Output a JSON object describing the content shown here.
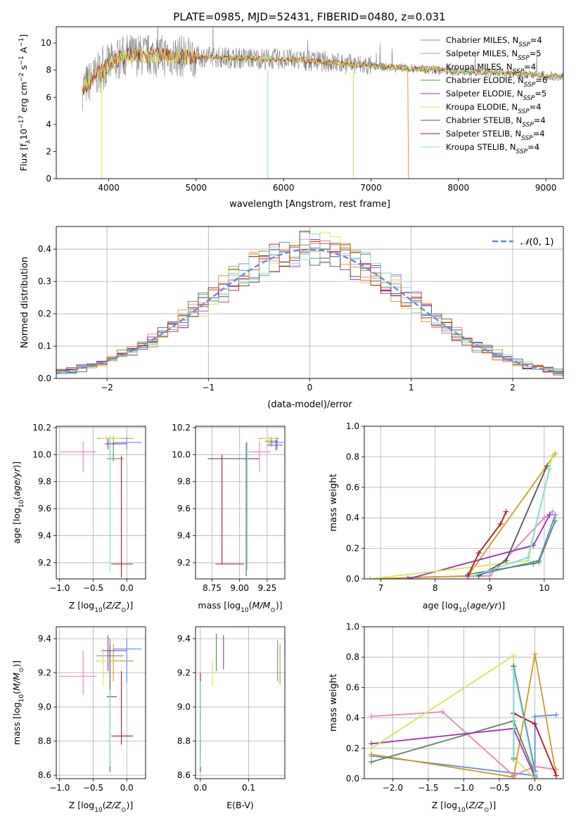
{
  "figure_title": "PLATE=0985, MJD=52431, FIBERID=0480, z=0.031",
  "colors": {
    "Chabrier MILES": "#5b8ee6",
    "Salpeter MILES": "#e87fbf",
    "Kroupa MILES": "#d09a20",
    "Chabrier ELODIE": "#5a8a5a",
    "Salpeter ELODIE": "#9b2fc0",
    "Kroupa ELODIE": "#d4e84a",
    "Chabrier STELIB": "#555555",
    "Salpeter STELIB": "#b0151b",
    "Kroupa STELIB": "#7fdde0",
    "orange": "#e07a2a",
    "gauss": "#5b8ee6"
  },
  "chart_data": [
    {
      "id": "spectrum",
      "type": "line",
      "xlabel": "wavelength [Angstrom, rest frame]",
      "ylabel": "Flux [f_λ 10^-17 erg cm^-2 s^-1 A^-1]",
      "xlim": [
        3400,
        9200
      ],
      "ylim": [
        0,
        11.2
      ],
      "xticks": [
        4000,
        5000,
        6000,
        7000,
        8000,
        9000
      ],
      "yticks": [
        0,
        2,
        4,
        6,
        8,
        10
      ],
      "legend_position": "upper right",
      "legend": [
        {
          "main": "Chabrier MILES, N",
          "sub": "SSP",
          "tail": "=4"
        },
        {
          "main": "Salpeter MILES, N",
          "sub": "SSP",
          "tail": "=5"
        },
        {
          "main": "Kroupa MILES, N",
          "sub": "SSP",
          "tail": "=4"
        },
        {
          "main": "Chabrier ELODIE, N",
          "sub": "SSP",
          "tail": "=6"
        },
        {
          "main": "Salpeter ELODIE, N",
          "sub": "SSP",
          "tail": "=5"
        },
        {
          "main": "Kroupa ELODIE, N",
          "sub": "SSP",
          "tail": "=4"
        },
        {
          "main": "Chabrier STELIB, N",
          "sub": "SSP",
          "tail": "=4"
        },
        {
          "main": "Salpeter STELIB, N",
          "sub": "SSP",
          "tail": "=4"
        },
        {
          "main": "Kroupa STELIB, N",
          "sub": "SSP",
          "tail": "=4"
        }
      ],
      "continuum": {
        "x": [
          3700,
          3850,
          4000,
          4200,
          4500,
          5000,
          5500,
          6000,
          6500,
          7000,
          7500,
          8000,
          8500,
          9000,
          9200
        ],
        "y": [
          6.6,
          7.6,
          8.4,
          9.1,
          9.1,
          9.0,
          8.9,
          8.8,
          8.6,
          8.3,
          8.1,
          7.9,
          7.8,
          7.6,
          7.5
        ]
      }
    },
    {
      "id": "residuals",
      "type": "histogram",
      "xlabel": "(data-model)/error",
      "ylabel": "Normed distribution",
      "xlim": [
        -2.5,
        2.5
      ],
      "ylim": [
        0,
        0.47
      ],
      "xticks": [
        -2,
        -1,
        0,
        1,
        2
      ],
      "yticks": [
        0.0,
        0.1,
        0.2,
        0.3,
        0.4
      ],
      "grid": true,
      "legend_label": "N(0,1)",
      "bin_width": 0.1
    },
    {
      "id": "age-vs-Z",
      "type": "errorbar",
      "xlabel": "Z [log10(Z/Z_sun)]",
      "ylabel": "age  [log10(age/yr)]",
      "xlim": [
        -1.05,
        0.28
      ],
      "ylim": [
        9.08,
        10.21
      ],
      "xticks": [
        -1.0,
        -0.5,
        0.0
      ],
      "yticks": [
        9.2,
        9.4,
        9.6,
        9.8,
        10.0,
        10.2
      ],
      "points": [
        {
          "model": "Chabrier MILES",
          "x": 0.0,
          "xerr": [
            0.2,
            0.22
          ],
          "y": 10.09,
          "yerr": [
            0.05,
            0.04
          ]
        },
        {
          "model": "Salpeter MILES",
          "x": -0.65,
          "xerr": [
            0.35,
            0.2
          ],
          "y": 10.02,
          "yerr": [
            0.15,
            0.08
          ]
        },
        {
          "model": "Kroupa MILES",
          "x": -0.2,
          "xerr": [
            0.25,
            0.3
          ],
          "y": 10.12,
          "yerr": [
            0.05,
            0.02
          ]
        },
        {
          "model": "Chabrier ELODIE",
          "x": -0.2,
          "xerr": [
            0.1,
            0.15
          ],
          "y": 9.97,
          "yerr": [
            0.02,
            0.12
          ]
        },
        {
          "model": "Salpeter ELODIE",
          "x": -0.28,
          "xerr": [
            0.05,
            0.28
          ],
          "y": 10.08,
          "yerr": [
            0.04,
            0.04
          ]
        },
        {
          "model": "Kroupa ELODIE",
          "x": -0.3,
          "xerr": [
            0.1,
            0.2
          ],
          "y": 10.12,
          "yerr": [
            0.04,
            0.02
          ]
        },
        {
          "model": "Chabrier STELIB",
          "x": -0.25,
          "xerr": [
            0.05,
            0.1
          ],
          "y": 10.08,
          "yerr": [
            0.1,
            0.04
          ]
        },
        {
          "model": "Salpeter STELIB",
          "x": -0.08,
          "xerr": [
            0.15,
            0.17
          ],
          "y": 9.19,
          "yerr": [
            0.1,
            0.8
          ]
        },
        {
          "model": "Kroupa STELIB",
          "x": -0.25,
          "xerr": [
            0.02,
            0.02
          ],
          "y": 10.09,
          "yerr": [
            0.96,
            0.05
          ]
        }
      ]
    },
    {
      "id": "age-vs-mass",
      "type": "errorbar",
      "xlabel": "mass [log10(M/M_sun)]",
      "ylabel": "",
      "xlim": [
        8.6,
        9.41
      ],
      "ylim": [
        9.08,
        10.21
      ],
      "xticks": [
        8.75,
        9.0,
        9.25
      ],
      "xtick_labels": [
        "8.75",
        "9.00",
        "9.25"
      ],
      "yticks": [
        9.2,
        9.4,
        9.6,
        9.8,
        10.0,
        10.2
      ],
      "points": [
        {
          "model": "Chabrier MILES",
          "x": 9.34,
          "xerr": [
            0.08,
            0.06
          ],
          "y": 10.09,
          "yerr": [
            0.05,
            0.04
          ]
        },
        {
          "model": "Salpeter MILES",
          "x": 9.18,
          "xerr": [
            0.1,
            0.1
          ],
          "y": 10.02,
          "yerr": [
            0.15,
            0.08
          ]
        },
        {
          "model": "Kroupa MILES",
          "x": 9.27,
          "xerr": [
            0.1,
            0.08
          ],
          "y": 10.12,
          "yerr": [
            0.05,
            0.02
          ]
        },
        {
          "model": "Chabrier ELODIE",
          "x": 9.29,
          "xerr": [
            0.06,
            0.06
          ],
          "y": 10.1,
          "yerr": [
            0.04,
            0.03
          ]
        },
        {
          "model": "Salpeter ELODIE",
          "x": 9.33,
          "xerr": [
            0.08,
            0.06
          ],
          "y": 10.07,
          "yerr": [
            0.04,
            0.04
          ]
        },
        {
          "model": "Kroupa ELODIE",
          "x": 9.27,
          "xerr": [
            0.07,
            0.05
          ],
          "y": 10.12,
          "yerr": [
            0.03,
            0.02
          ]
        },
        {
          "model": "Chabrier STELIB",
          "x": 9.06,
          "xerr": [
            0.35,
            0.12
          ],
          "y": 9.97,
          "yerr": [
            0.87,
            0.12
          ]
        },
        {
          "model": "Salpeter STELIB",
          "x": 8.84,
          "xerr": [
            0.06,
            0.2
          ],
          "y": 9.19,
          "yerr": [
            0.0,
            0.81
          ]
        },
        {
          "model": "Kroupa STELIB",
          "x": 9.07,
          "xerr": [
            0.0,
            0.0
          ],
          "y": 10.05,
          "yerr": [
            0.9,
            0.04
          ]
        }
      ]
    },
    {
      "id": "mass-weight-vs-age",
      "type": "line",
      "xlabel": "age  [log10(age/yr)]",
      "ylabel": "mass weight",
      "xlim": [
        6.7,
        10.35
      ],
      "ylim": [
        0,
        1.0
      ],
      "xticks": [
        7,
        8,
        9,
        10
      ],
      "yticks": [
        0.0,
        0.2,
        0.4,
        0.6,
        0.8,
        1.0
      ],
      "grid": true,
      "series": [
        {
          "model": "Chabrier MILES",
          "x": [
            8.7,
            9.9,
            10.2
          ],
          "y": [
            0.02,
            0.12,
            0.42
          ]
        },
        {
          "model": "Salpeter MILES",
          "x": [
            7.5,
            9.0,
            10.0,
            10.15
          ],
          "y": [
            0.01,
            0.02,
            0.4,
            0.44
          ]
        },
        {
          "model": "Kroupa MILES",
          "x": [
            6.8,
            8.6,
            10.2
          ],
          "y": [
            0.0,
            0.02,
            0.82
          ]
        },
        {
          "model": "Chabrier ELODIE",
          "x": [
            8.6,
            9.8,
            9.9,
            10.2
          ],
          "y": [
            0.03,
            0.1,
            0.11,
            0.38
          ]
        },
        {
          "model": "Salpeter ELODIE",
          "x": [
            7.5,
            9.8,
            10.1
          ],
          "y": [
            0.0,
            0.22,
            0.42
          ]
        },
        {
          "model": "Kroupa ELODIE",
          "x": [
            6.8,
            9.7,
            10.15
          ],
          "y": [
            0.0,
            0.12,
            0.81
          ]
        },
        {
          "model": "Chabrier STELIB",
          "x": [
            8.8,
            9.3,
            10.05
          ],
          "y": [
            0.02,
            0.12,
            0.74
          ]
        },
        {
          "model": "Salpeter STELIB",
          "x": [
            8.6,
            8.8,
            9.2,
            9.3
          ],
          "y": [
            0.02,
            0.17,
            0.36,
            0.44
          ]
        },
        {
          "model": "Kroupa STELIB",
          "x": [
            8.7,
            9.7,
            10.1
          ],
          "y": [
            0.02,
            0.14,
            0.72
          ]
        }
      ]
    },
    {
      "id": "mass-vs-Z",
      "type": "errorbar",
      "xlabel": "Z [log10(Z/Z_sun)]",
      "ylabel": "mass [log10(M/M_sun)]",
      "xlim": [
        -1.05,
        0.28
      ],
      "ylim": [
        8.58,
        9.47
      ],
      "xticks": [
        -1.0,
        -0.5,
        0.0
      ],
      "yticks": [
        8.6,
        8.8,
        9.0,
        9.2,
        9.4
      ],
      "points": [
        {
          "model": "Chabrier MILES",
          "x": 0.0,
          "xerr": [
            0.2,
            0.22
          ],
          "y": 9.34,
          "yerr": [
            0.2,
            0.06
          ]
        },
        {
          "model": "Salpeter MILES",
          "x": -0.65,
          "xerr": [
            0.35,
            0.2
          ],
          "y": 9.18,
          "yerr": [
            0.11,
            0.15
          ]
        },
        {
          "model": "Kroupa MILES",
          "x": -0.2,
          "xerr": [
            0.25,
            0.3
          ],
          "y": 9.27,
          "yerr": [
            0.12,
            0.1
          ]
        },
        {
          "model": "Chabrier ELODIE",
          "x": -0.25,
          "xerr": [
            0.2,
            0.2
          ],
          "y": 9.3,
          "yerr": [
            0.06,
            0.1
          ]
        },
        {
          "model": "Salpeter ELODIE",
          "x": -0.28,
          "xerr": [
            0.1,
            0.28
          ],
          "y": 9.33,
          "yerr": [
            0.12,
            0.09
          ]
        },
        {
          "model": "Kroupa ELODIE",
          "x": -0.35,
          "xerr": [
            0.08,
            0.15
          ],
          "y": 9.27,
          "yerr": [
            0.15,
            0.08
          ]
        },
        {
          "model": "Chabrier STELIB",
          "x": -0.25,
          "xerr": [
            0.05,
            0.1
          ],
          "y": 9.06,
          "yerr": [
            0.44,
            0.3
          ]
        },
        {
          "model": "Salpeter STELIB",
          "x": -0.08,
          "xerr": [
            0.15,
            0.17
          ],
          "y": 8.83,
          "yerr": [
            0.05,
            0.38
          ]
        },
        {
          "model": "Kroupa STELIB",
          "x": -0.25,
          "xerr": [
            0.02,
            0.02
          ],
          "y": 9.0,
          "yerr": [
            0.35,
            0.1
          ]
        }
      ]
    },
    {
      "id": "mass-vs-EBV",
      "type": "errorbar",
      "xlabel": "E(B-V)",
      "ylabel": "",
      "xlim": [
        -0.01,
        0.175
      ],
      "ylim": [
        8.58,
        9.47
      ],
      "xticks": [
        0.0,
        0.1
      ],
      "xtick_labels": [
        "0.0",
        "0.1"
      ],
      "yticks": [
        8.6,
        8.8,
        9.0,
        9.2,
        9.4
      ],
      "points": [
        {
          "model": "Chabrier MILES",
          "x": 0.16,
          "xerr": [
            0.0,
            0.0
          ],
          "y": 9.27,
          "yerr": [
            0.12,
            0.12
          ]
        },
        {
          "model": "Salpeter MILES",
          "x": 0.0,
          "xerr": [
            0.0,
            0.0
          ],
          "y": 9.0,
          "yerr": [
            0.3,
            0.15
          ]
        },
        {
          "model": "Kroupa MILES",
          "x": 0.165,
          "xerr": [
            0.0,
            0.0
          ],
          "y": 9.25,
          "yerr": [
            0.12,
            0.12
          ]
        },
        {
          "model": "Chabrier ELODIE",
          "x": 0.033,
          "xerr": [
            0.0,
            0.0
          ],
          "y": 9.33,
          "yerr": [
            0.12,
            0.1
          ]
        },
        {
          "model": "Salpeter ELODIE",
          "x": 0.048,
          "xerr": [
            0.0,
            0.0
          ],
          "y": 9.32,
          "yerr": [
            0.1,
            0.1
          ]
        },
        {
          "model": "Kroupa ELODIE",
          "x": 0.025,
          "xerr": [
            0.0,
            0.0
          ],
          "y": 9.2,
          "yerr": [
            0.08,
            0.08
          ]
        },
        {
          "model": "Chabrier STELIB",
          "x": 0.0,
          "xerr": [
            0.0,
            0.0
          ],
          "y": 8.85,
          "yerr": [
            0.23,
            0.15
          ]
        },
        {
          "model": "Salpeter STELIB",
          "x": 0.0,
          "xerr": [
            0.0,
            0.0
          ],
          "y": 9.0,
          "yerr": [
            0.3,
            0.2
          ]
        },
        {
          "model": "Kroupa STELIB",
          "x": 0.0,
          "xerr": [
            0.0,
            0.0
          ],
          "y": 8.95,
          "yerr": [
            0.3,
            0.2
          ]
        }
      ]
    },
    {
      "id": "mass-weight-vs-Z",
      "type": "line",
      "xlabel": "Z [log10(Z/Z_sun)]",
      "ylabel": "mass weight",
      "xlim": [
        -2.4,
        0.4
      ],
      "ylim": [
        0,
        1.0
      ],
      "xticks": [
        -2.0,
        -1.5,
        -1.0,
        -0.5,
        0.0
      ],
      "yticks": [
        0.0,
        0.2,
        0.4,
        0.6,
        0.8,
        1.0
      ],
      "grid": true,
      "series": [
        {
          "model": "Chabrier MILES",
          "x": [
            -2.3,
            0.0,
            0.0,
            0.3
          ],
          "y": [
            0.15,
            0.02,
            0.41,
            0.42
          ]
        },
        {
          "model": "Salpeter MILES",
          "x": [
            -2.3,
            -1.3,
            -0.3,
            0.0,
            0.3
          ],
          "y": [
            0.41,
            0.44,
            0.02,
            0.08,
            0.06
          ]
        },
        {
          "model": "Kroupa MILES",
          "x": [
            -2.3,
            -0.3,
            0.0,
            0.3
          ],
          "y": [
            0.16,
            0.01,
            0.82,
            0.02
          ]
        },
        {
          "model": "Chabrier ELODIE",
          "x": [
            -2.3,
            -0.3,
            0.0
          ],
          "y": [
            0.11,
            0.38,
            0.03
          ]
        },
        {
          "model": "Salpeter ELODIE",
          "x": [
            -2.3,
            -0.3,
            0.0
          ],
          "y": [
            0.23,
            0.33,
            0.01
          ]
        },
        {
          "model": "Kroupa ELODIE",
          "x": [
            -2.3,
            -0.3,
            -0.3,
            0.0
          ],
          "y": [
            0.2,
            0.81,
            0.14,
            0.0
          ]
        },
        {
          "model": "Chabrier STELIB",
          "x": [
            -0.3,
            -0.3,
            0.0
          ],
          "y": [
            0.13,
            0.74,
            0.05
          ]
        },
        {
          "model": "Salpeter STELIB",
          "x": [
            -0.3,
            0.0,
            0.3
          ],
          "y": [
            0.43,
            0.36,
            0.02
          ]
        },
        {
          "model": "Kroupa STELIB",
          "x": [
            -0.3,
            -0.3,
            0.0
          ],
          "y": [
            0.14,
            0.72,
            0.03
          ]
        }
      ]
    }
  ]
}
